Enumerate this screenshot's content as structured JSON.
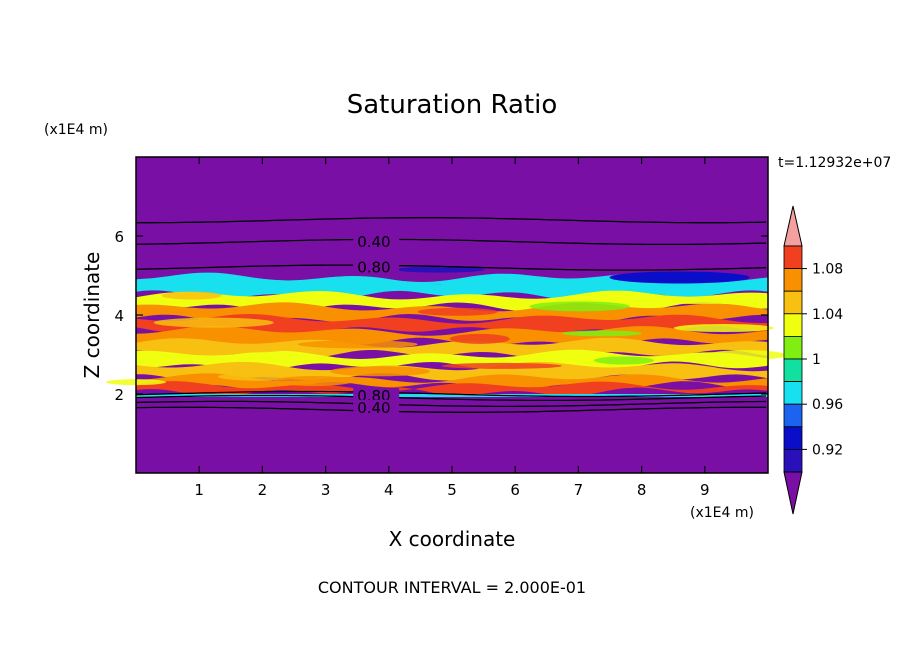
{
  "chart_data": {
    "type": "heatmap",
    "title": "Saturation Ratio",
    "xlabel": "X coordinate",
    "ylabel": "Z coordinate",
    "x_unit": "(x1E4 m)",
    "y_unit": "(x1E4 m)",
    "time_label": "t=1.12932e+07",
    "footer": "CONTOUR INTERVAL = 2.000E-01",
    "xlim": [
      0,
      10
    ],
    "ylim": [
      0,
      8
    ],
    "x_ticks": [
      "1",
      "2",
      "3",
      "4",
      "5",
      "6",
      "7",
      "8",
      "9"
    ],
    "y_ticks": [
      "2",
      "4",
      "6"
    ],
    "contour_labels": [
      "0.40",
      "0.80",
      "0.80",
      "0.40"
    ],
    "colorbar": {
      "tick_labels": [
        "0.92",
        "0.96",
        "1",
        "1.04",
        "1.08"
      ],
      "levels": [
        0.9,
        0.92,
        0.94,
        0.96,
        0.98,
        1.0,
        1.02,
        1.04,
        1.06,
        1.08,
        1.1
      ],
      "colors": [
        "#7a0fa6",
        "#2a10b8",
        "#0a0ec8",
        "#1c64f0",
        "#18e0ee",
        "#10e0a0",
        "#80ee10",
        "#f0ff10",
        "#f8c010",
        "#f89000",
        "#f04020",
        "#f4a0a0"
      ]
    },
    "bands": [
      {
        "z_top": 4.9,
        "z_bot": 4.5,
        "value": 0.96
      },
      {
        "z_top": 4.5,
        "z_bot": 4.2,
        "value": 1.02
      },
      {
        "z_top": 4.2,
        "z_bot": 3.9,
        "value": 1.06
      },
      {
        "z_top": 3.9,
        "z_bot": 3.6,
        "value": 1.08
      },
      {
        "z_top": 3.6,
        "z_bot": 3.3,
        "value": 1.06
      },
      {
        "z_top": 3.3,
        "z_bot": 3.0,
        "value": 1.04
      },
      {
        "z_top": 3.0,
        "z_bot": 2.7,
        "value": 1.02
      },
      {
        "z_top": 2.7,
        "z_bot": 2.4,
        "value": 1.04
      },
      {
        "z_top": 2.4,
        "z_bot": 2.2,
        "value": 1.06
      },
      {
        "z_top": 2.2,
        "z_bot": 2.05,
        "value": 1.08
      }
    ],
    "contours_z": [
      6.4,
      5.85,
      5.2,
      2.0,
      1.9,
      1.75,
      1.6
    ]
  }
}
